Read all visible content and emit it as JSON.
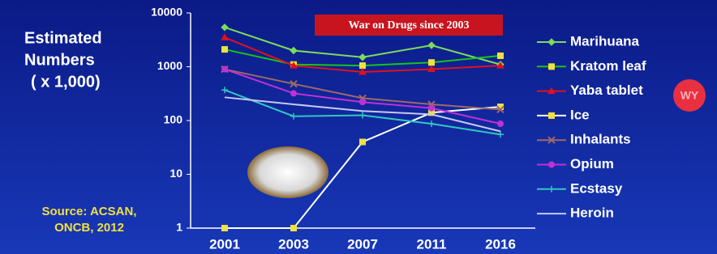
{
  "chart_data": {
    "type": "line",
    "yscale": "log",
    "y_label": [
      "Estimated",
      "Numbers",
      "( x 1,000)"
    ],
    "source": [
      "Source: ACSAN,",
      "ONCB, 2012"
    ],
    "annotation": "War on Drugs since 2003",
    "pill_label": "WY",
    "categories": [
      "2001",
      "2003",
      "2007",
      "2011",
      "2016"
    ],
    "ylim": [
      1,
      10000
    ],
    "yticks": [
      1,
      10,
      100,
      1000,
      10000
    ],
    "series": [
      {
        "name": "Marihuana",
        "color": "#7ddc5a",
        "marker": "diamond",
        "values": [
          5400,
          2000,
          1500,
          2500,
          1100
        ]
      },
      {
        "name": "Kratom leaf",
        "color": "#18c418",
        "marker": "square",
        "values": [
          2100,
          1100,
          1050,
          1200,
          1600
        ]
      },
      {
        "name": "Yaba tablet",
        "color": "#e01020",
        "marker": "triangle",
        "values": [
          3500,
          1050,
          800,
          900,
          1050
        ]
      },
      {
        "name": "Ice",
        "color": "#ffffff",
        "marker": "square",
        "values": [
          1,
          1,
          40,
          140,
          180
        ]
      },
      {
        "name": "Inhalants",
        "color": "#a06868",
        "marker": "x",
        "values": [
          900,
          480,
          260,
          200,
          160
        ]
      },
      {
        "name": "Opium",
        "color": "#c030d8",
        "marker": "circle",
        "values": [
          900,
          320,
          220,
          170,
          87
        ]
      },
      {
        "name": "Ecstasy",
        "color": "#30c8c0",
        "marker": "plus",
        "values": [
          370,
          120,
          125,
          87,
          55
        ]
      },
      {
        "name": "Heroin",
        "color": "#c8c8f4",
        "marker": "none",
        "values": [
          270,
          200,
          150,
          130,
          63
        ]
      }
    ]
  }
}
